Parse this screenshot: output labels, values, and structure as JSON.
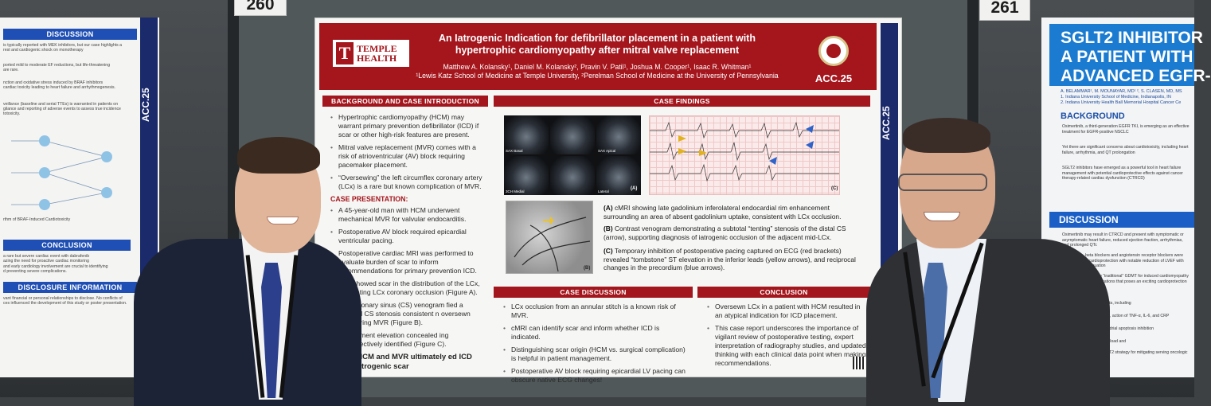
{
  "booth_numbers": {
    "left": "260",
    "right": "261"
  },
  "left_poster": {
    "sections": [
      "DISCUSSION",
      "CONCLUSION",
      "DISCLOSURE INFORMATION"
    ],
    "side_label": "ACC.25",
    "lines": [
      "is typically reported with MEK inhibitors, but our case highlights a",
      "rest and cardiogenic shock on monotherapy",
      "ported mild to moderate EF reductions, but life-threatening",
      "are rare.",
      "nction and oxidative stress induced by BRAF inhibitors",
      "cardiac toxicity leading to heart failure and arrhythmogenesis.",
      "veillance (baseline and serial TTEs) is warranted in patients on",
      "gilance and reporting of adverse events to assess true incidence",
      "totoxicity.",
      "rthm of BRAF-Induced Cardiotoxicity",
      "a rare but severe cardiac event with dabrafenib",
      "azing the need for proactive cardiac monitoring",
      "and early cardiology involvement are crucial to identifying",
      "d preventing severe complications.",
      "vant financial or personal relationships to disclose. No conflicts of",
      "ces influenced the development of this study or poster presentation."
    ]
  },
  "main_poster": {
    "logo": {
      "mark": "T",
      "line1": "TEMPLE",
      "line2": "HEALTH"
    },
    "title_line1": "An Iatrogenic Indication for defibrillator placement in a patient with",
    "title_line2": "hypertrophic cardiomyopathy after mitral valve replacement",
    "authors_line1": "Matthew A. Kolansky¹, Daniel M. Kolansky², Pravin V. Patil¹, Joshua M. Cooper¹, Isaac R. Whitman¹",
    "authors_line2": "¹Lewis Katz School of Medicine at Temple University, ²Perelman School of Medicine at the University of Pennsylvania",
    "acc_label": "ACC.25",
    "background": {
      "heading": "BACKGROUND AND CASE INTRODUCTION",
      "bullets": [
        "Hypertrophic cardiomyopathy (HCM) may warrant primary prevention defibrillator (ICD) if scar or other high-risk features are present.",
        "Mitral valve replacement (MVR) comes with a risk of atrioventricular (AV) block requiring pacemaker placement.",
        "“Oversewing” the left circumflex coronary artery (LCx) is a rare but known complication of MVR."
      ],
      "case_heading": "CASE PRESENTATION:",
      "case_bullets": [
        "A 45-year-old man with HCM underwent mechanical MVR for valvular endocarditis.",
        "Postoperative AV block required epicardial ventricular pacing.",
        "Postoperative cardiac MRI was performed to evaluate burden of scar to inform recommendations for primary prevention ICD.",
        "MRI showed scar in the distribution of the LCx, implicating LCx coronary occlusion (Figure A).",
        "rast coronary sinus (CS) venogram fied a subtotal CS stenosis consistent n oversewn LCx during MVR (Figure B).",
        "ST segment elevation concealed ing retrospectively identified (Figure C)."
      ],
      "closing": "nt with HCM and MVR ultimately ed ICD due to iatrogenic scar"
    },
    "findings": {
      "heading": "CASE FINDINGS",
      "mri_labels": [
        "SAX Basal",
        "",
        "SAX Apical",
        "3CH Medial",
        "",
        "Lateral"
      ],
      "panel_a": "(A)",
      "panel_b": "(B)",
      "panel_c": "(C)",
      "captions": [
        {
          "tag": "(A)",
          "text": " cMRI showing late gadolinium inferolateral endocardial rim enhancement surrounding an area of absent gadolinium uptake, consistent with LCx occlusion."
        },
        {
          "tag": "(B)",
          "text": " Contrast venogram demonstrating a subtotal “tenting” stenosis of the distal CS (arrow), supporting diagnosis of iatrogenic occlusion of the adjacent mid-LCx."
        },
        {
          "tag": "(C)",
          "text": " Temporary inhibition of postoperative pacing captured on ECG (red brackets) revealed “tombstone” ST elevation in the inferior leads (yellow arrows), and reciprocal changes in the precordium (blue arrows)."
        }
      ]
    },
    "discussion": {
      "heading": "CASE DISCUSSION",
      "bullets": [
        "LCx occlusion from an annular stitch is a known risk of MVR.",
        "cMRI can identify scar and inform whether ICD is indicated.",
        "Distinguishing scar origin (HCM vs. surgical complication) is helpful in patient management.",
        "Postoperative AV block requiring epicardial LV pacing can obscure native ECG changes!"
      ]
    },
    "conclusion": {
      "heading": "CONCLUSION",
      "bullets": [
        "Oversewn LCx in a patient with HCM resulted in an atypical indication for ICD placement.",
        "This case report underscores the importance of vigilant review of postoperative testing, expert interpretation of radiography studies, and updated thinking with each clinical data point when making recommendations."
      ]
    }
  },
  "right_poster": {
    "title_line1": "SGLT2 INHIBITOR",
    "title_line2": "A PATIENT WITH",
    "title_line3": "ADVANCED EGFR-",
    "authors": [
      "A. BELAMMAR¹, M. MOUNAYAR, MD¹ ², S. CLASEN, MD, MS",
      "1. Indiana University School of Medicine, Indianapolis, IN",
      "2. Indiana University Health Ball Memorial Hospital Cancer Ce"
    ],
    "background_heading": "BACKGROUND",
    "background_lines": [
      "Osimertinib, a third-generation EGFR TKI, is emerging as an effective treatment for EGFR-positive NSCLC",
      "Yet there are significant concerns about cardiotoxicity, including heart failure, arrhythmia, and QT prolongation",
      "SGLT2 inhibitors have emerged as a powerful tool in heart failure management with potential cardioprotective effects against cancer therapy-related cardiac dysfunction (CTRCD)"
    ],
    "discussion_heading": "DISCUSSION",
    "discussion_lines": [
      "Osimertinib may result in CTRCD and present with symptomatic or asymptomatic heart failure, reduced ejection fraction, arrhythmias, and prolonged QTc",
      "In this case, beta blockers and angiotensin receptor blockers were insufficient for cardioprotection with notable reduction of LVEF with osimertinib continuation",
      "of SGLT2 inhibitors to “traditional” GDMT for induced cardiomyopathy is a novel use of medications that poses an exciting cardioprotection in the cardio-oncology",
      "may offer multifaceted facts, including",
      "and anti-fibrotic properties, action of TNF-α, IL-6, and CRP",
      "effects including mitochondrial apoptosis inhibition",
      "ssion with reduction of preload and",
      "safe, effective use of SGLT2 strategy for mitigating serving oncologic efficacy"
    ]
  }
}
